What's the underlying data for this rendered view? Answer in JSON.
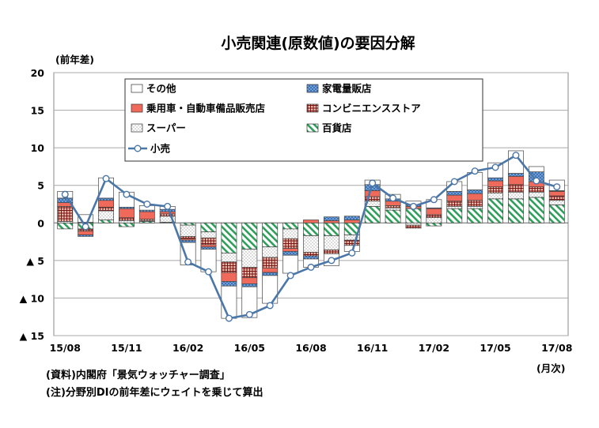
{
  "chart_data": {
    "type": "bar",
    "stacked": true,
    "title": "小売関連(原数値)の要因分解",
    "ylabel": "(前年差)",
    "xlabel": "(月次)",
    "ylim": [
      -15,
      20
    ],
    "yticks": [
      {
        "value": 20,
        "label": "20"
      },
      {
        "value": 15,
        "label": "15"
      },
      {
        "value": 10,
        "label": "10"
      },
      {
        "value": 5,
        "label": "5"
      },
      {
        "value": 0,
        "label": "0"
      },
      {
        "value": -5,
        "label": "▲ 5"
      },
      {
        "value": -10,
        "label": "▲ 10"
      },
      {
        "value": -15,
        "label": "▲ 15"
      }
    ],
    "grid": true,
    "legend_position": "top-center",
    "categories": [
      "15/08",
      "15/09",
      "15/10",
      "15/11",
      "15/12",
      "16/01",
      "16/02",
      "16/03",
      "16/04",
      "16/05",
      "16/06",
      "16/07",
      "16/08",
      "16/09",
      "16/10",
      "16/11",
      "16/12",
      "17/01",
      "17/02",
      "17/03",
      "17/04",
      "17/05",
      "17/06",
      "17/07",
      "17/08"
    ],
    "xtick_labels": [
      {
        "index": 0,
        "label": "15/08"
      },
      {
        "index": 3,
        "label": "15/11"
      },
      {
        "index": 6,
        "label": "16/02"
      },
      {
        "index": 9,
        "label": "16/05"
      },
      {
        "index": 12,
        "label": "16/08"
      },
      {
        "index": 15,
        "label": "16/11"
      },
      {
        "index": 18,
        "label": "17/02"
      },
      {
        "index": 21,
        "label": "17/05"
      },
      {
        "index": 24,
        "label": "17/08"
      }
    ],
    "series": [
      {
        "name": "百貨店",
        "pattern": "diag",
        "color": "#2e9e5b",
        "values": [
          -0.8,
          -0.8,
          0.4,
          -0.5,
          0.2,
          0.1,
          -0.3,
          -1.2,
          -4.0,
          -3.5,
          -3.2,
          -0.8,
          -1.7,
          -1.7,
          -1.6,
          2.2,
          1.7,
          1.9,
          -0.4,
          1.9,
          1.9,
          3.2,
          3.2,
          3.4,
          2.4
        ]
      },
      {
        "name": "スーパー",
        "pattern": "dots",
        "color": "#999999",
        "values": [
          0.2,
          0.1,
          1.2,
          0.3,
          0.1,
          0.8,
          -1.5,
          -0.8,
          -1.2,
          -2.4,
          -1.4,
          -1.3,
          -2.2,
          -1.9,
          -0.7,
          0.7,
          0.3,
          -0.3,
          0.7,
          0.3,
          0.3,
          0.8,
          0.9,
          0.7,
          0.6
        ]
      },
      {
        "name": "コンビニエンスストア",
        "pattern": "grid",
        "color": "#8b1a1a",
        "values": [
          2.0,
          -0.3,
          0.5,
          0.4,
          0.2,
          0.3,
          -0.3,
          -0.9,
          -1.4,
          -1.4,
          -1.4,
          -1.3,
          -0.5,
          -0.5,
          -0.7,
          0.6,
          0.3,
          -0.4,
          0.4,
          0.7,
          0.8,
          0.8,
          1.0,
          0.7,
          0.6
        ]
      },
      {
        "name": "乗用車・自動車備品販売店",
        "pattern": "solid",
        "color": "#ef6a5a",
        "values": [
          0.5,
          -0.5,
          0.9,
          1.2,
          1.0,
          0.3,
          -0.2,
          -0.3,
          -1.2,
          -0.8,
          -0.6,
          -0.4,
          0.4,
          0.3,
          0.4,
          0.8,
          0.6,
          0.3,
          0.8,
          0.8,
          0.9,
          0.8,
          1.1,
          0.7,
          0.6
        ]
      },
      {
        "name": "家電量販店",
        "pattern": "bluedots",
        "color": "#3b73b9",
        "values": [
          0.6,
          -0.2,
          0.3,
          0.2,
          0.2,
          0.3,
          -0.3,
          -0.3,
          -0.6,
          -0.4,
          -0.4,
          -0.5,
          -0.4,
          0.5,
          0.5,
          0.8,
          0.3,
          0.2,
          0.1,
          0.5,
          0.5,
          0.4,
          0.4,
          1.3,
          0.1
        ]
      },
      {
        "name": "その他",
        "pattern": "empty",
        "color": "#ffffff",
        "values": [
          0.9,
          1.0,
          2.7,
          2.0,
          0.6,
          0.4,
          -3.0,
          -3.0,
          -4.3,
          -4.1,
          -3.7,
          -2.4,
          -1.1,
          -1.6,
          -0.8,
          0.6,
          0.6,
          0.5,
          1.1,
          1.3,
          2.3,
          2.0,
          3.0,
          0.7,
          1.4
        ]
      }
    ],
    "line": {
      "name": "小売",
      "color": "#4a76a8",
      "values": [
        3.8,
        -0.5,
        5.9,
        3.8,
        2.5,
        2.2,
        -5.2,
        -6.5,
        -12.7,
        -12.2,
        -11.0,
        -7.0,
        -5.9,
        -5.0,
        -4.0,
        5.3,
        3.3,
        2.2,
        3.1,
        5.5,
        6.9,
        7.4,
        9.0,
        5.6,
        4.8
      ]
    }
  },
  "notes": [
    "(資料)内閣府「景気ウォッチャー調査」",
    "(注)分野別DIの前年差にウェイトを乗じて算出"
  ]
}
